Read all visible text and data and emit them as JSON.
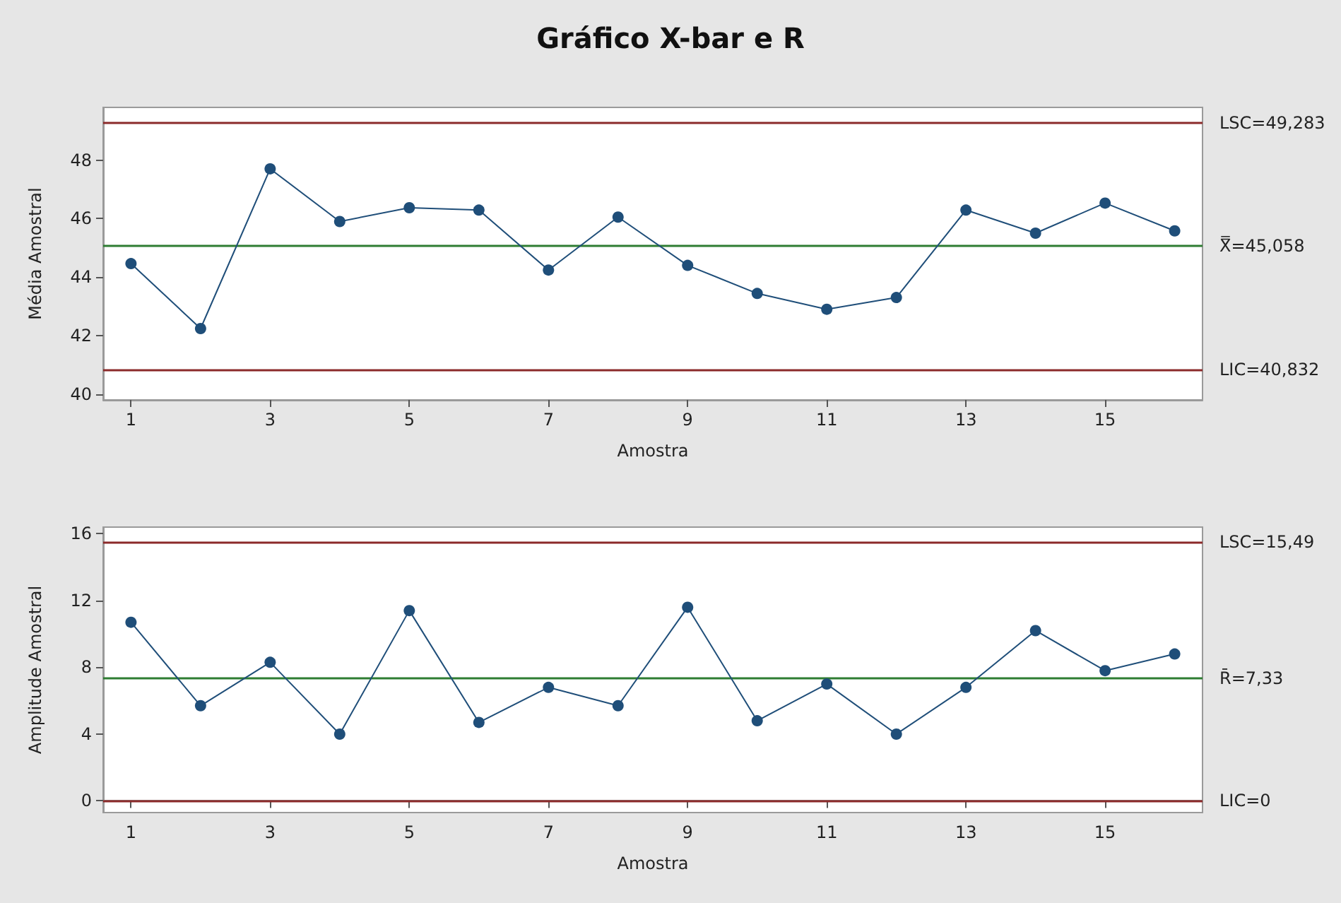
{
  "chart_data": [
    {
      "type": "line",
      "title": "Gráfico X-bar e R",
      "xlabel": "Amostra",
      "ylabel": "Média Amostral",
      "x": [
        1,
        2,
        3,
        4,
        5,
        6,
        7,
        8,
        9,
        10,
        11,
        12,
        13,
        14,
        15,
        16
      ],
      "series": [
        {
          "color": "#1f4e79",
          "values": [
            44.46,
            42.24,
            47.7,
            45.9,
            46.37,
            46.29,
            44.24,
            46.05,
            44.4,
            43.44,
            42.9,
            43.3,
            46.29,
            45.5,
            46.53,
            45.58
          ]
        }
      ],
      "xlim": [
        0.6,
        16.4
      ],
      "xticks": [
        1,
        3,
        5,
        7,
        9,
        11,
        13,
        15
      ],
      "ylim": [
        39.8,
        49.8
      ],
      "yticks": [
        40,
        42,
        44,
        46,
        48
      ],
      "ref_lines": [
        {
          "axis": "y",
          "value": 49.283,
          "label": "LSC=49,283",
          "color": "#8b2a2a"
        },
        {
          "axis": "y",
          "value": 45.058,
          "label": "X̿=45,058",
          "color": "#2e7d32"
        },
        {
          "axis": "y",
          "value": 40.832,
          "label": "LIC=40,832",
          "color": "#8b2a2a"
        }
      ],
      "marker": "circle",
      "line_style": "solid",
      "grid": false
    },
    {
      "type": "line",
      "xlabel": "Amostra",
      "ylabel": "Amplitude Amostral",
      "x": [
        1,
        2,
        3,
        4,
        5,
        6,
        7,
        8,
        9,
        10,
        11,
        12,
        13,
        14,
        15,
        16
      ],
      "series": [
        {
          "color": "#1f4e79",
          "values": [
            10.7,
            5.7,
            8.3,
            4.0,
            11.4,
            4.7,
            6.8,
            5.7,
            11.6,
            4.8,
            7.0,
            4.0,
            6.8,
            10.2,
            7.8,
            8.8
          ]
        }
      ],
      "xlim": [
        0.6,
        16.4
      ],
      "xticks": [
        1,
        3,
        5,
        7,
        9,
        11,
        13,
        15
      ],
      "ylim": [
        -0.7,
        16.4
      ],
      "yticks": [
        0,
        4,
        8,
        12,
        16
      ],
      "ref_lines": [
        {
          "axis": "y",
          "value": 15.49,
          "label": "LSC=15,49",
          "color": "#8b2a2a"
        },
        {
          "axis": "y",
          "value": 7.33,
          "label": "R̄=7,33",
          "color": "#2e7d32"
        },
        {
          "axis": "y",
          "value": 0,
          "label": "LIC=0",
          "color": "#8b2a2a"
        }
      ],
      "marker": "circle",
      "line_style": "solid",
      "grid": false
    }
  ]
}
